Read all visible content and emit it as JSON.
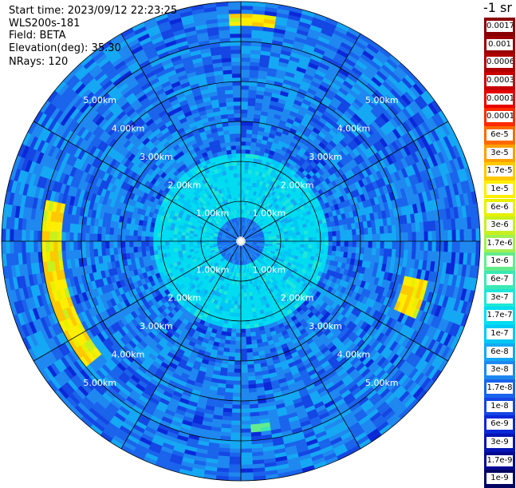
{
  "header": {
    "start_time": "Start time: 2023/09/12 22:23:25",
    "instrument": "WLS200s-181",
    "field": "Field: BETA",
    "elevation": "Elevation(deg): 35.30",
    "nrays": "NRays: 120"
  },
  "legend": {
    "title": "-1 sr",
    "levels": [
      {
        "label": "0.0017",
        "color": "#8a0000"
      },
      {
        "label": "0.001",
        "color": "#9a0000"
      },
      {
        "label": "0.0006",
        "color": "#b00000"
      },
      {
        "label": "0.0003",
        "color": "#c80000"
      },
      {
        "label": "0.00017",
        "color": "#e60000"
      },
      {
        "label": "0.0001",
        "color": "#ff2a00"
      },
      {
        "label": "6e-5",
        "color": "#ff6a00"
      },
      {
        "label": "3e-5",
        "color": "#ffa000"
      },
      {
        "label": "1.7e-5",
        "color": "#ffc800"
      },
      {
        "label": "1e-5",
        "color": "#ffee00"
      },
      {
        "label": "6e-6",
        "color": "#e8f000"
      },
      {
        "label": "3e-6",
        "color": "#c8f01e"
      },
      {
        "label": "1.7e-6",
        "color": "#a0f050"
      },
      {
        "label": "1e-6",
        "color": "#64ec8c"
      },
      {
        "label": "6e-7",
        "color": "#3ce8b4"
      },
      {
        "label": "3e-7",
        "color": "#1ee6d8"
      },
      {
        "label": "1.7e-7",
        "color": "#00dcf0"
      },
      {
        "label": "1e-7",
        "color": "#00c8f4"
      },
      {
        "label": "6e-8",
        "color": "#14a8f4"
      },
      {
        "label": "3e-8",
        "color": "#1e88f0"
      },
      {
        "label": "1.7e-8",
        "color": "#1a64ec"
      },
      {
        "label": "1e-8",
        "color": "#1446e4"
      },
      {
        "label": "6e-9",
        "color": "#0a28d8"
      },
      {
        "label": "3e-9",
        "color": "#0614b4"
      },
      {
        "label": "1.7e-9",
        "color": "#040a90"
      },
      {
        "label": "1e-9",
        "color": "#020660"
      }
    ]
  },
  "chart_data": {
    "type": "heatmap",
    "projection": "polar-ppi",
    "field": "BETA",
    "nrays": 120,
    "range_rings_km": [
      1,
      2,
      3,
      4,
      5,
      6
    ],
    "range_labels": [
      "1.00km",
      "2.00km",
      "3.00km",
      "4.00km",
      "5.00km"
    ],
    "azimuth_lines_deg": [
      0,
      30,
      60,
      90,
      120,
      150,
      180,
      210,
      240,
      270,
      300,
      330
    ],
    "max_range_km": 6.0,
    "colorbar": "legend.levels",
    "features": [
      {
        "description": "near-field mid values",
        "range_km": [
          0,
          2.2
        ],
        "level": "1.7e-7"
      },
      {
        "description": "far-field lower values",
        "range_km": [
          2.2,
          6.0
        ],
        "level": "1.7e-8"
      },
      {
        "description": "strong echo",
        "azimuth_deg": [
          356,
          8
        ],
        "range_km": [
          5.4,
          5.7
        ],
        "level": "1e-5"
      },
      {
        "description": "strong echo",
        "azimuth_deg": [
          103,
          113
        ],
        "range_km": [
          4.2,
          4.8
        ],
        "level": "1e-5"
      },
      {
        "description": "strong echo arc",
        "azimuth_deg": [
          232,
          282
        ],
        "range_km": [
          4.5,
          5.0
        ],
        "level": "1e-5"
      },
      {
        "description": "weak echo",
        "azimuth_deg": [
          170,
          176
        ],
        "range_km": [
          4.6,
          4.8
        ],
        "level": "1e-6"
      }
    ]
  }
}
